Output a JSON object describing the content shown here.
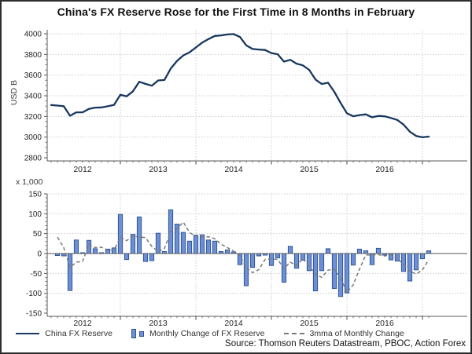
{
  "title": "China's FX Reserve Rose for the First Time in 8 Months in February",
  "source": "Source: Thomson Reuters Datastream, PBOC, Action Forex",
  "legend": {
    "items": [
      {
        "label": "China FX Reserve"
      },
      {
        "label": "Monthly Change of FX Reserve"
      },
      {
        "label": "3mma of Monthly Change"
      }
    ]
  },
  "colors": {
    "line": "#17375E",
    "bar_fill": "#6E8FD6",
    "bar_stroke": "#2F5597",
    "mma": "#7a7a7a",
    "grid": "#cccccc",
    "axis": "#595959",
    "zero_line": "#555555",
    "tick_text": "#262626"
  },
  "chart_data": [
    {
      "type": "line",
      "series_name": "China FX Reserve",
      "ylabel": "USD B",
      "ylim": [
        2800,
        4000
      ],
      "yticks": [
        2800,
        3000,
        3200,
        3400,
        3600,
        3800,
        4000
      ],
      "grid": true,
      "legend_position": "bottom",
      "x_year_labels": [
        "2012",
        "2013",
        "2014",
        "2015",
        "2016"
      ],
      "months": [
        "2012-02",
        "2012-03",
        "2012-04",
        "2012-05",
        "2012-06",
        "2012-07",
        "2012-08",
        "2012-09",
        "2012-10",
        "2012-11",
        "2012-12",
        "2013-01",
        "2013-02",
        "2013-03",
        "2013-04",
        "2013-05",
        "2013-06",
        "2013-07",
        "2013-08",
        "2013-09",
        "2013-10",
        "2013-11",
        "2013-12",
        "2014-01",
        "2014-02",
        "2014-03",
        "2014-04",
        "2014-05",
        "2014-06",
        "2014-07",
        "2014-08",
        "2014-09",
        "2014-10",
        "2014-11",
        "2014-12",
        "2015-01",
        "2015-02",
        "2015-03",
        "2015-04",
        "2015-05",
        "2015-06",
        "2015-07",
        "2015-08",
        "2015-09",
        "2015-10",
        "2015-11",
        "2015-12",
        "2016-01",
        "2016-02",
        "2016-03",
        "2016-04",
        "2016-05",
        "2016-06",
        "2016-07",
        "2016-08",
        "2016-09",
        "2016-10",
        "2016-11",
        "2016-12",
        "2017-01",
        "2017-02"
      ],
      "values": [
        3310,
        3305,
        3299,
        3206,
        3240,
        3240,
        3273,
        3285,
        3287,
        3298,
        3312,
        3410,
        3395,
        3443,
        3535,
        3515,
        3497,
        3548,
        3553,
        3663,
        3737,
        3790,
        3821,
        3867,
        3914,
        3948,
        3979,
        3984,
        3993,
        3997,
        3969,
        3888,
        3853,
        3847,
        3843,
        3813,
        3802,
        3730,
        3748,
        3711,
        3694,
        3651,
        3557,
        3514,
        3526,
        3438,
        3330,
        3231,
        3202,
        3213,
        3220,
        3192,
        3205,
        3201,
        3185,
        3166,
        3121,
        3052,
        3011,
        2998,
        3005
      ]
    },
    {
      "type": "bar",
      "series_name": "Monthly Change of FX Reserve",
      "unit_label": "x 1,000",
      "ylim": [
        -150,
        150
      ],
      "yticks": [
        -150,
        -100,
        -50,
        0,
        50,
        100,
        150
      ],
      "grid": true,
      "x_year_labels": [
        "2012",
        "2013",
        "2014",
        "2015",
        "2016"
      ],
      "months": [
        "2012-03",
        "2012-04",
        "2012-05",
        "2012-06",
        "2012-07",
        "2012-08",
        "2012-09",
        "2012-10",
        "2012-11",
        "2012-12",
        "2013-01",
        "2013-02",
        "2013-03",
        "2013-04",
        "2013-05",
        "2013-06",
        "2013-07",
        "2013-08",
        "2013-09",
        "2013-10",
        "2013-11",
        "2013-12",
        "2014-01",
        "2014-02",
        "2014-03",
        "2014-04",
        "2014-05",
        "2014-06",
        "2014-07",
        "2014-08",
        "2014-09",
        "2014-10",
        "2014-11",
        "2014-12",
        "2015-01",
        "2015-02",
        "2015-03",
        "2015-04",
        "2015-05",
        "2015-06",
        "2015-07",
        "2015-08",
        "2015-09",
        "2015-10",
        "2015-11",
        "2015-12",
        "2016-01",
        "2016-02",
        "2016-03",
        "2016-04",
        "2016-05",
        "2016-06",
        "2016-07",
        "2016-08",
        "2016-09",
        "2016-10",
        "2016-11",
        "2016-12",
        "2017-01",
        "2017-02"
      ],
      "values": [
        -5,
        -6,
        -93,
        34,
        0,
        33,
        12,
        2,
        11,
        14,
        98,
        -15,
        48,
        92,
        -20,
        -18,
        51,
        5,
        110,
        74,
        53,
        31,
        46,
        47,
        34,
        31,
        5,
        9,
        4,
        -28,
        -81,
        -35,
        -6,
        -4,
        -30,
        -11,
        -72,
        18,
        -37,
        -17,
        -43,
        -94,
        -43,
        12,
        -88,
        -108,
        -99,
        -29,
        11,
        7,
        -28,
        13,
        -4,
        -16,
        -19,
        -45,
        -69,
        -41,
        -13,
        7
      ],
      "mma_series_name": "3mma of Monthly Change",
      "mma_values": [
        41.3,
        15.0,
        -34.7,
        -21.7,
        -19.7,
        22.3,
        15.0,
        15.7,
        8.3,
        9.0,
        41.0,
        32.3,
        43.7,
        41.7,
        40.0,
        18.0,
        4.3,
        12.7,
        55.3,
        63.0,
        79.0,
        52.7,
        43.3,
        41.3,
        42.3,
        37.3,
        23.3,
        15.0,
        6.0,
        -5.0,
        -35.0,
        -48.0,
        -40.7,
        -15.0,
        -13.3,
        -15.0,
        -37.7,
        -21.7,
        -30.3,
        -12.0,
        -32.3,
        -51.3,
        -60.0,
        -41.7,
        -39.7,
        -61.3,
        -98.3,
        -78.7,
        -39.0,
        -3.7,
        -3.3,
        -2.7,
        -6.3,
        -2.3,
        -13.0,
        -26.7,
        -44.3,
        -51.7,
        -41.0,
        -15.7
      ]
    }
  ]
}
